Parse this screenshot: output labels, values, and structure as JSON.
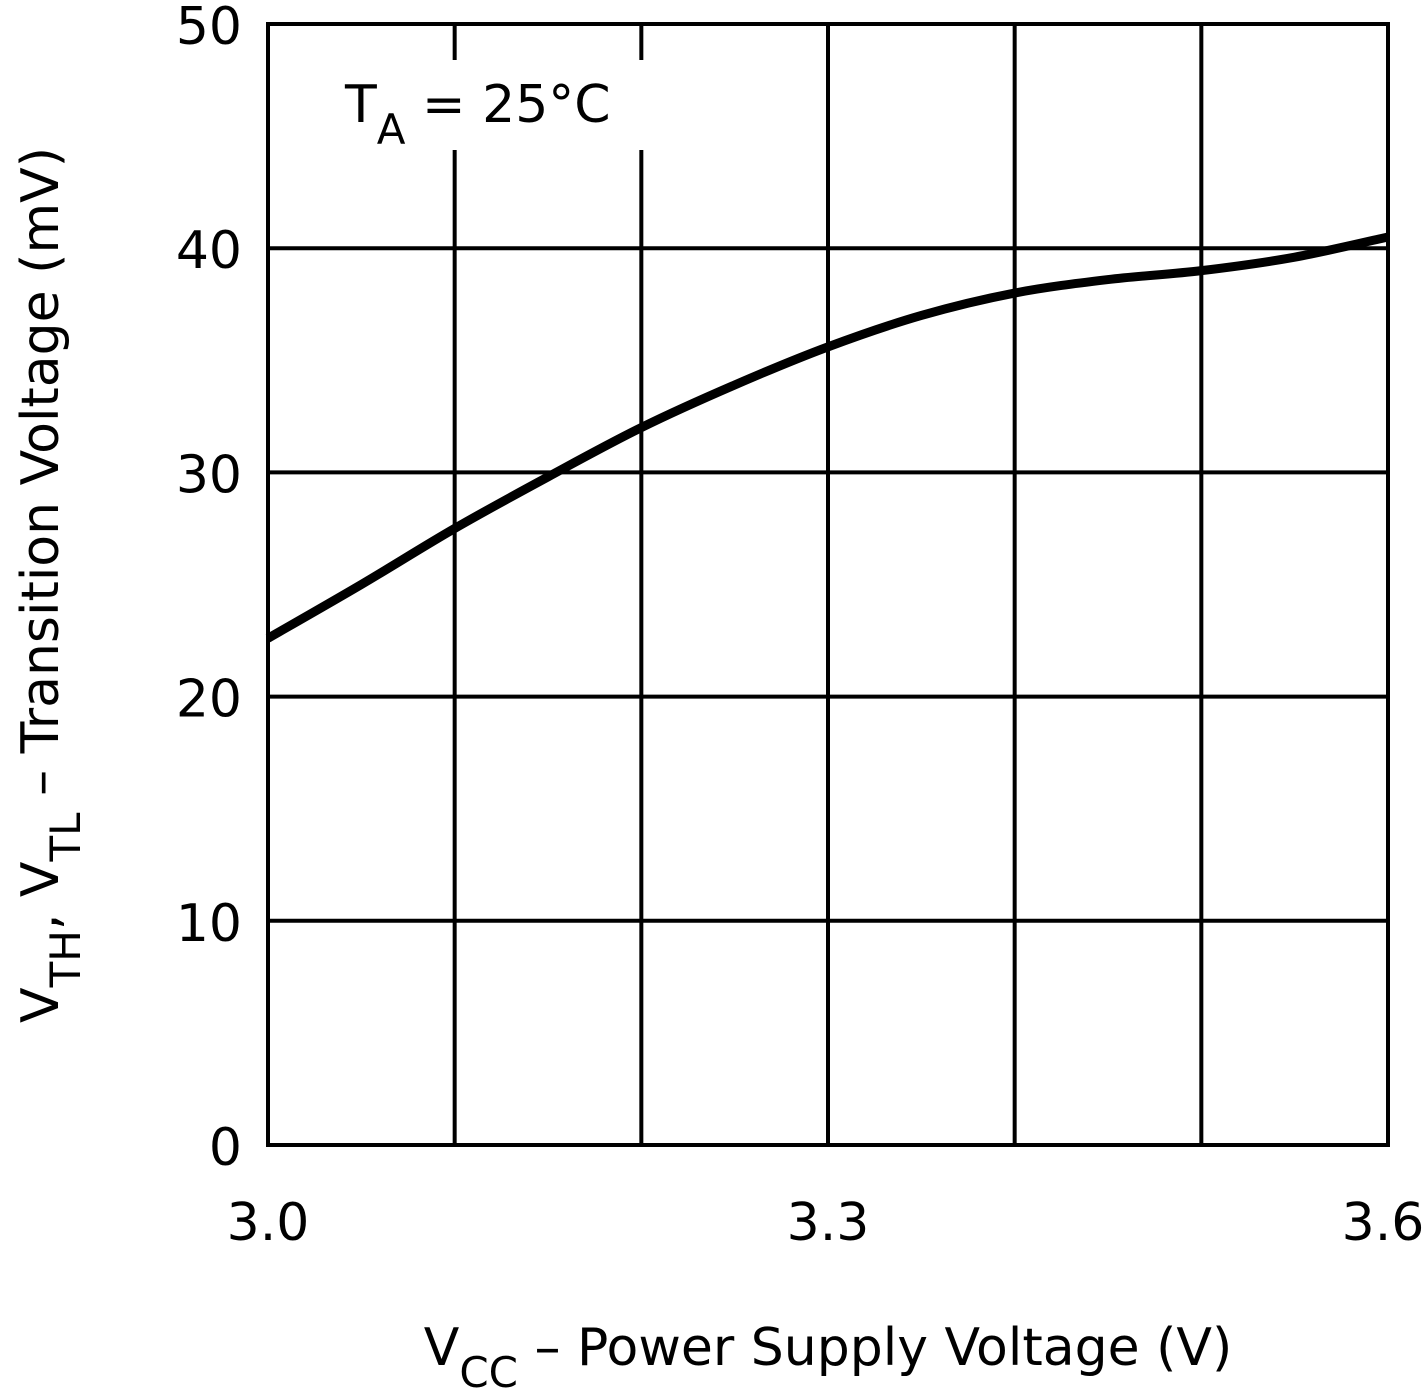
{
  "chart_data": {
    "type": "line",
    "title": "",
    "annotation": {
      "main": "T",
      "sub": "A",
      "rest": " = 25°C"
    },
    "xlabel": {
      "main": "V",
      "sub": "CC",
      "rest": " – Power Supply Voltage (V)"
    },
    "ylabel": {
      "p1": "V",
      "s1": "TH",
      "p2": ", V",
      "s2": "TL",
      "p3": " – Transition Voltage (mV)"
    },
    "xlim": [
      3.0,
      3.6
    ],
    "ylim": [
      0,
      50
    ],
    "x_ticks": [
      3.0,
      3.3,
      3.6
    ],
    "x_tick_labels": [
      "3.0",
      "3.3",
      "3.6"
    ],
    "x_grid": [
      3.0,
      3.1,
      3.2,
      3.3,
      3.4,
      3.5,
      3.6
    ],
    "y_ticks": [
      0,
      10,
      20,
      30,
      40,
      50
    ],
    "y_tick_labels": [
      "0",
      "10",
      "20",
      "30",
      "40",
      "50"
    ],
    "grid": true,
    "series": [
      {
        "x": [
          3.0,
          3.05,
          3.1,
          3.15,
          3.2,
          3.25,
          3.3,
          3.35,
          3.4,
          3.45,
          3.5,
          3.55,
          3.6
        ],
        "y": [
          22.6,
          25.0,
          27.5,
          29.8,
          32.0,
          33.9,
          35.6,
          37.0,
          38.0,
          38.6,
          39.0,
          39.6,
          40.5
        ],
        "color": "#000000"
      }
    ]
  }
}
